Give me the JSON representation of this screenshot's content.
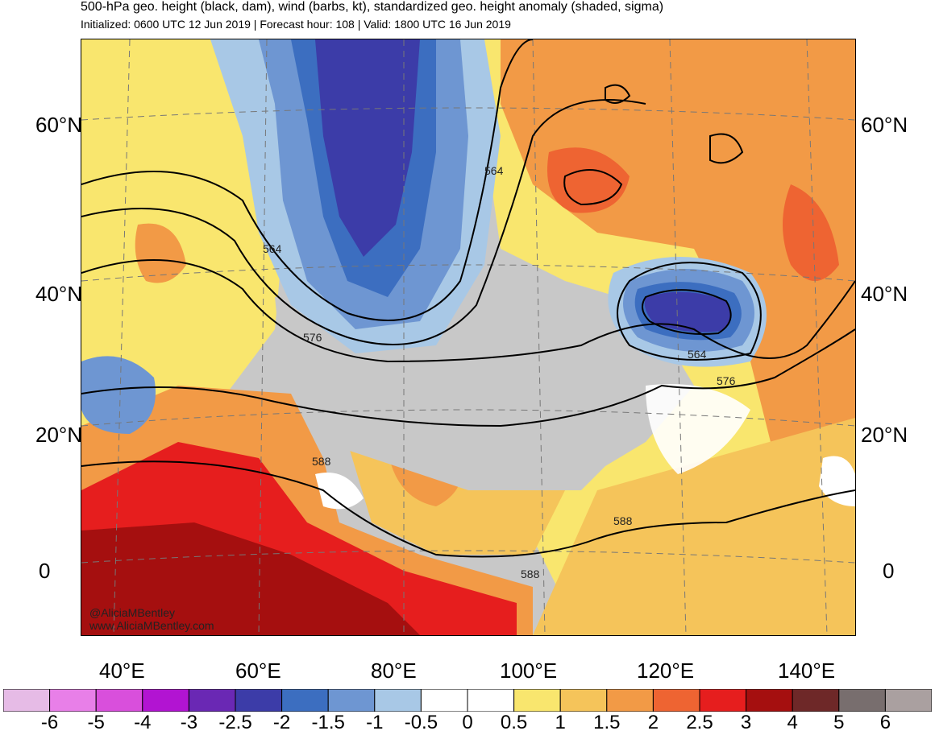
{
  "header": {
    "title": "500-hPa geo. height (black, dam), wind (barbs, kt), standardized geo. height anomaly (shaded, sigma)",
    "subtitle": "Initialized: 0600 UTC 12 Jun 2019 | Forecast hour: 108 | Valid: 1800 UTC 16 Jun 2019"
  },
  "map": {
    "lat_labels_left": [
      "60°N",
      "40°N",
      "20°N",
      "0"
    ],
    "lat_labels_right": [
      "60°N",
      "40°N",
      "20°N",
      "0"
    ],
    "lon_labels": [
      "40°E",
      "60°E",
      "80°E",
      "100°E",
      "120°E",
      "140°E"
    ],
    "contour_labels": [
      "564",
      "564",
      "576",
      "564",
      "576",
      "588",
      "588",
      "588"
    ],
    "credit_handle": "@AliciaMBentley",
    "credit_url": "www.AliciaMBentley.com"
  },
  "colorbar": {
    "ticks": [
      "-6",
      "-5",
      "-4",
      "-3",
      "-2.5",
      "-2",
      "-1.5",
      "-1",
      "-0.5",
      "0",
      "0.5",
      "1",
      "1.5",
      "2",
      "2.5",
      "3",
      "4",
      "5",
      "6"
    ],
    "colors": [
      "#e6bbe6",
      "#e87fe8",
      "#d94fdc",
      "#b214d2",
      "#6a28b4",
      "#3c3ca8",
      "#3c6ec0",
      "#6e96d2",
      "#a8c8e6",
      "#ffffff",
      "#ffffff",
      "#f9e66e",
      "#f5c45a",
      "#f29a46",
      "#ee6432",
      "#e61e1e",
      "#a50f0f",
      "#6e2828",
      "#786e6e",
      "#aaa0a0"
    ]
  }
}
